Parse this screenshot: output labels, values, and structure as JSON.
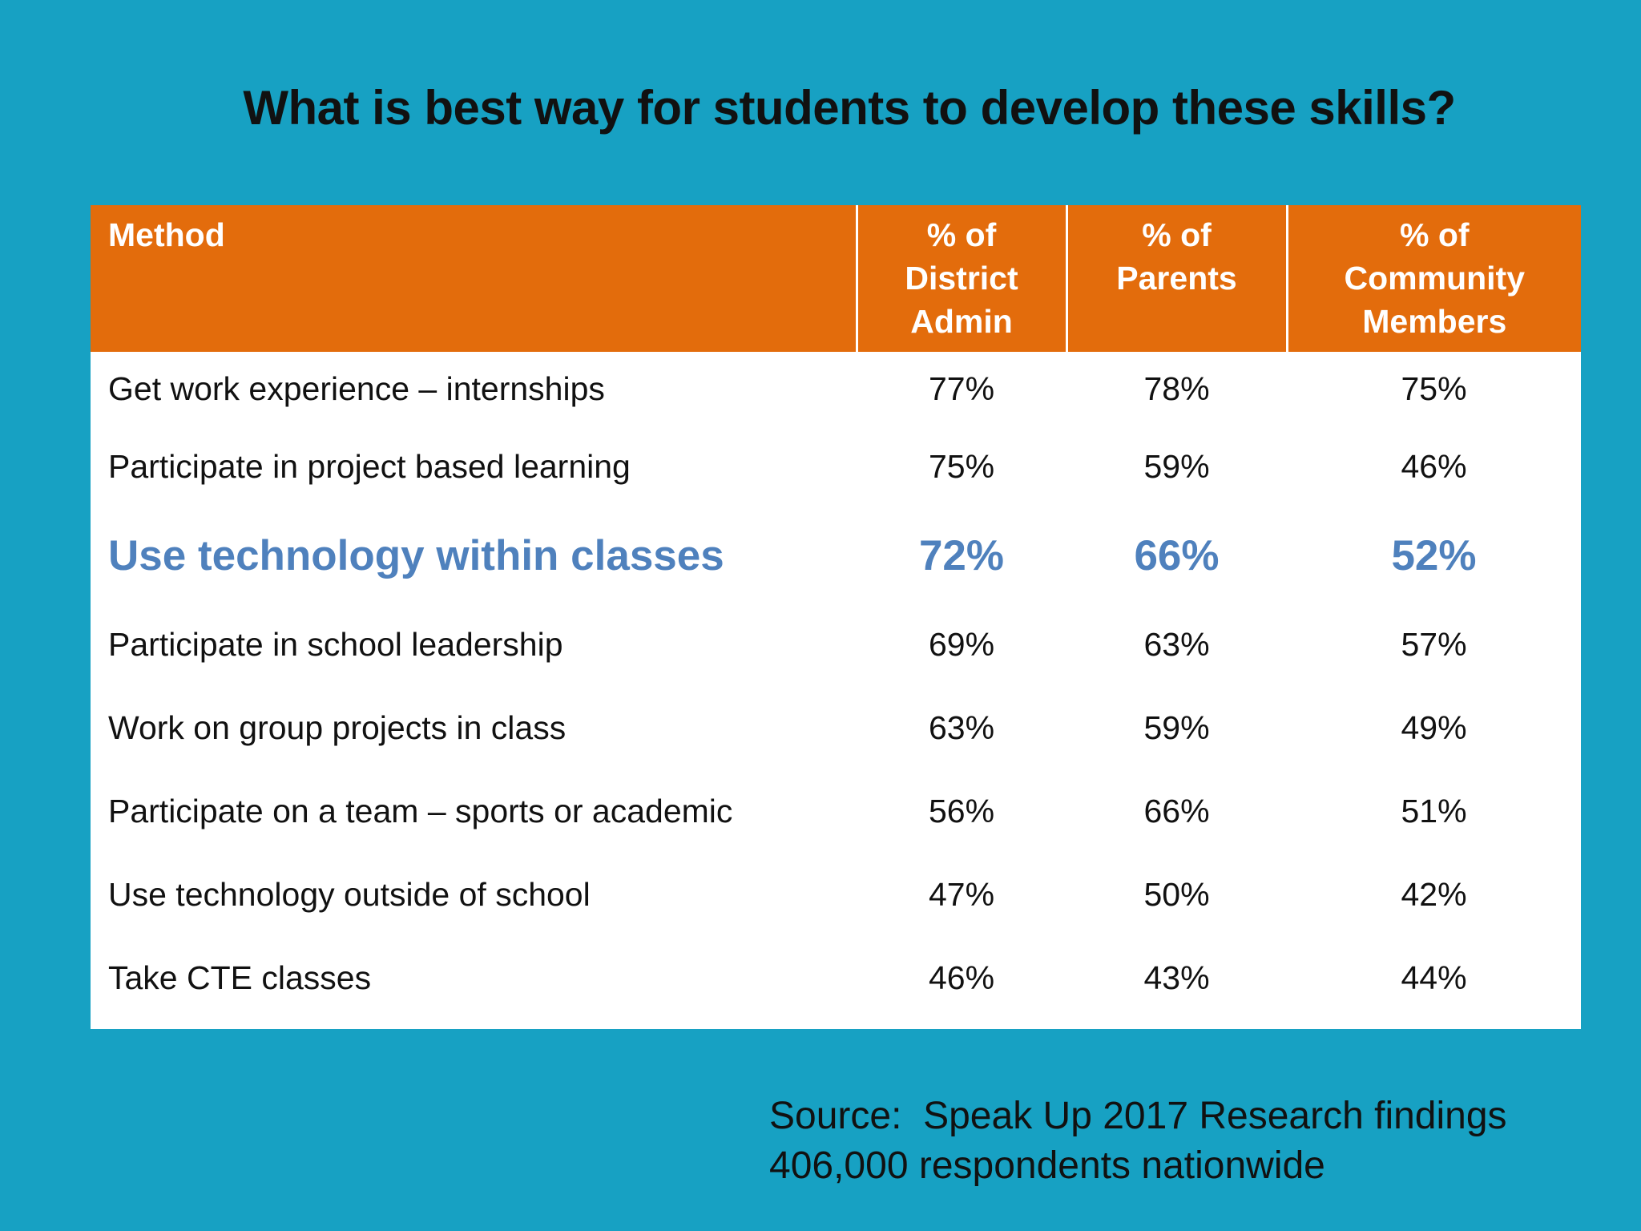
{
  "title": "What is best way for students to develop these skills?",
  "table": {
    "headers": [
      [
        "Method"
      ],
      [
        "% of",
        "District",
        "Admin"
      ],
      [
        "% of",
        "Parents"
      ],
      [
        "% of",
        "Community",
        "Members"
      ]
    ],
    "rows": [
      {
        "method": "Get work experience – internships",
        "admin": "77%",
        "parents": "78%",
        "community": "75%"
      },
      {
        "method": "Participate in project based learning",
        "admin": "75%",
        "parents": "59%",
        "community": "46%"
      },
      {
        "method": "Use technology within classes",
        "admin": "72%",
        "parents": "66%",
        "community": "52%"
      },
      {
        "method": "Participate in school leadership",
        "admin": "69%",
        "parents": "63%",
        "community": "57%"
      },
      {
        "method": "Work on group projects in class",
        "admin": "63%",
        "parents": "59%",
        "community": "49%"
      },
      {
        "method": "Participate on a team – sports or academic",
        "admin": "56%",
        "parents": "66%",
        "community": "51%"
      },
      {
        "method": "Use technology outside of school",
        "admin": "47%",
        "parents": "50%",
        "community": "42%"
      },
      {
        "method": "Take CTE classes",
        "admin": "46%",
        "parents": "43%",
        "community": "44%"
      }
    ],
    "highlight_row": 2
  },
  "source": {
    "line1": "Source:  Speak Up 2017 Research findings",
    "line2": "406,000 respondents nationwide"
  },
  "colors": {
    "background": "#17a1c3",
    "header_fill": "#e36c0c",
    "highlight_text": "#4f81bd"
  }
}
